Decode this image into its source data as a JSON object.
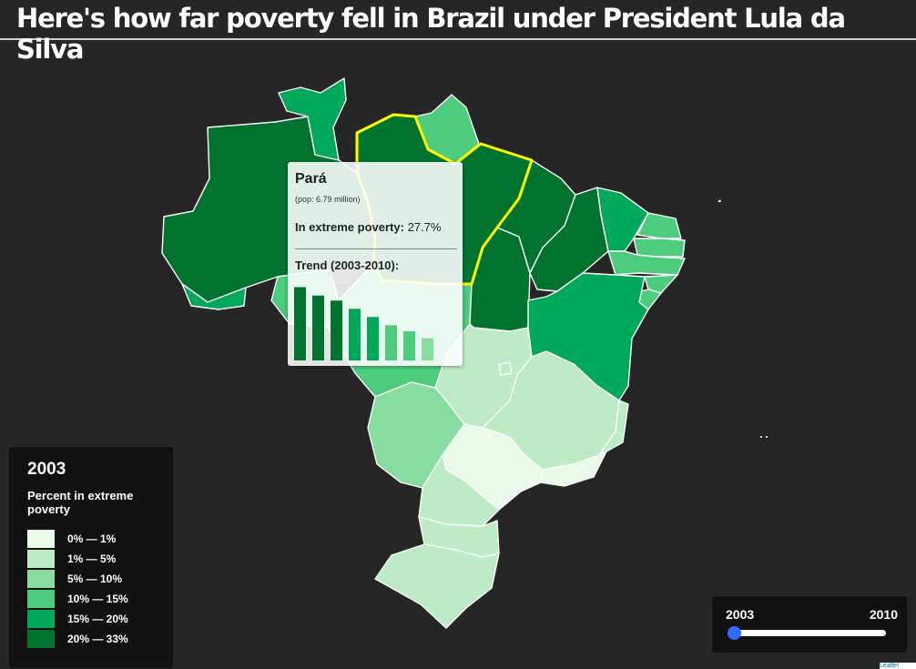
{
  "title": "Here's how far poverty fell in Brazil under President Lula da Silva",
  "colors": {
    "background": "#262626",
    "bin_0": "#e9faea",
    "bin_1": "#bdebc6",
    "bin_2": "#86dd9f",
    "bin_3": "#4ccc7c",
    "bin_4": "#00a85a",
    "bin_5": "#00742f",
    "highlight": "#ffff00",
    "slider_thumb": "#2f6bff"
  },
  "tooltip": {
    "state": "Pará",
    "population": "(pop: 6.79 million)",
    "stat_label": "In extreme poverty:",
    "stat_value": "27.7%",
    "trend_label": "Trend (2003-2010):",
    "trend_values": [
      27.7,
      24.5,
      22.6,
      19.5,
      16.4,
      13.3,
      11.0,
      8.4
    ],
    "trend_max": 33
  },
  "legend": {
    "year": "2003",
    "subtitle": "Percent in extreme poverty",
    "bins": [
      {
        "label": "0% — 1%",
        "color": "#e9faea"
      },
      {
        "label": "1% — 5%",
        "color": "#bdebc6"
      },
      {
        "label": "5% — 10%",
        "color": "#86dd9f"
      },
      {
        "label": "10% — 15%",
        "color": "#4ccc7c"
      },
      {
        "label": "15% — 20%",
        "color": "#00a85a"
      },
      {
        "label": "20% — 33%",
        "color": "#00742f"
      }
    ]
  },
  "slider": {
    "start_label": "2003",
    "end_label": "2010",
    "value_fraction": 0
  },
  "attribution": "Leaflet"
}
